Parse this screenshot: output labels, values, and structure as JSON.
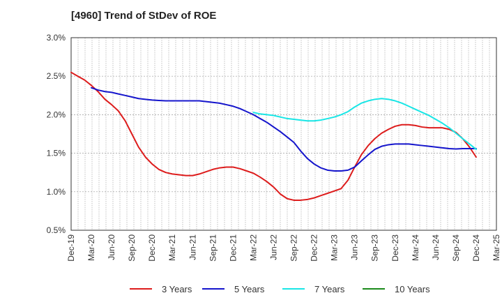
{
  "title": "[4960]  Trend of StDev of ROE",
  "chart_data": {
    "type": "line",
    "title": "[4960]  Trend of StDev of ROE",
    "xlabel": "",
    "ylabel": "",
    "ylim": [
      0.5,
      3.0
    ],
    "yticks": [
      "0.5%",
      "1.0%",
      "1.5%",
      "2.0%",
      "2.5%",
      "3.0%"
    ],
    "categories": [
      "Dec-19",
      "Mar-20",
      "Jun-20",
      "Sep-20",
      "Dec-20",
      "Mar-21",
      "Jun-21",
      "Sep-21",
      "Dec-21",
      "Mar-22",
      "Jun-22",
      "Sep-22",
      "Dec-22",
      "Mar-23",
      "Jun-23",
      "Sep-23",
      "Dec-23",
      "Mar-24",
      "Jun-24",
      "Sep-24",
      "Dec-24",
      "Mar-25"
    ],
    "grid": true,
    "legend_position": "bottom",
    "series": [
      {
        "name": "3 Years",
        "color": "#dd1c1c",
        "x": [
          0,
          0.33,
          0.67,
          1,
          1.33,
          1.67,
          2,
          2.33,
          2.67,
          3,
          3.33,
          3.67,
          4,
          4.33,
          4.67,
          5,
          5.33,
          5.67,
          6,
          6.33,
          6.67,
          7,
          7.33,
          7.67,
          8,
          8.33,
          8.67,
          9,
          9.33,
          9.67,
          10,
          10.33,
          10.67,
          11,
          11.33,
          11.67,
          12,
          12.33,
          12.67,
          13,
          13.33,
          13.67,
          14,
          14.33,
          14.67,
          15,
          15.33,
          15.67,
          16,
          16.33,
          16.67,
          17,
          17.33,
          17.67,
          18,
          18.33,
          18.67,
          19,
          19.33,
          19.67,
          20
        ],
        "values": [
          2.55,
          2.5,
          2.45,
          2.38,
          2.3,
          2.2,
          2.13,
          2.05,
          1.92,
          1.75,
          1.58,
          1.45,
          1.36,
          1.29,
          1.25,
          1.23,
          1.22,
          1.21,
          1.21,
          1.23,
          1.26,
          1.29,
          1.31,
          1.32,
          1.32,
          1.3,
          1.27,
          1.24,
          1.19,
          1.13,
          1.06,
          0.97,
          0.91,
          0.89,
          0.89,
          0.9,
          0.92,
          0.95,
          0.98,
          1.01,
          1.04,
          1.15,
          1.32,
          1.48,
          1.6,
          1.69,
          1.76,
          1.81,
          1.85,
          1.87,
          1.87,
          1.86,
          1.84,
          1.83,
          1.83,
          1.83,
          1.81,
          1.77,
          1.69,
          1.58,
          1.45
        ]
      },
      {
        "name": "5 Years",
        "color": "#1515cc",
        "x": [
          1,
          1.33,
          1.67,
          2,
          2.33,
          2.67,
          3,
          3.33,
          3.67,
          4,
          4.33,
          4.67,
          5,
          5.33,
          5.67,
          6,
          6.33,
          6.67,
          7,
          7.33,
          7.67,
          8,
          8.33,
          8.67,
          9,
          9.33,
          9.67,
          10,
          10.33,
          10.67,
          11,
          11.33,
          11.67,
          12,
          12.33,
          12.67,
          13,
          13.33,
          13.67,
          14,
          14.33,
          14.67,
          15,
          15.33,
          15.67,
          16,
          16.33,
          16.67,
          17,
          17.33,
          17.67,
          18,
          18.33,
          18.67,
          19,
          19.33,
          19.67,
          20
        ],
        "values": [
          2.35,
          2.32,
          2.3,
          2.29,
          2.27,
          2.25,
          2.23,
          2.21,
          2.2,
          2.19,
          2.185,
          2.18,
          2.18,
          2.18,
          2.18,
          2.18,
          2.18,
          2.17,
          2.16,
          2.15,
          2.13,
          2.11,
          2.08,
          2.04,
          2.0,
          1.95,
          1.9,
          1.84,
          1.78,
          1.71,
          1.64,
          1.53,
          1.43,
          1.36,
          1.31,
          1.28,
          1.27,
          1.27,
          1.28,
          1.32,
          1.4,
          1.48,
          1.55,
          1.59,
          1.61,
          1.62,
          1.62,
          1.62,
          1.61,
          1.6,
          1.59,
          1.58,
          1.57,
          1.56,
          1.555,
          1.56,
          1.56,
          1.56
        ]
      },
      {
        "name": "7 Years",
        "color": "#19e6e6",
        "x": [
          9,
          9.33,
          9.67,
          10,
          10.33,
          10.67,
          11,
          11.33,
          11.67,
          12,
          12.33,
          12.67,
          13,
          13.33,
          13.67,
          14,
          14.33,
          14.67,
          15,
          15.33,
          15.67,
          16,
          16.33,
          16.67,
          17,
          17.33,
          17.67,
          18,
          18.33,
          18.67,
          19,
          19.33,
          19.67,
          20
        ],
        "values": [
          2.03,
          2.01,
          2.0,
          1.99,
          1.97,
          1.95,
          1.94,
          1.93,
          1.92,
          1.92,
          1.93,
          1.95,
          1.97,
          2.0,
          2.04,
          2.1,
          2.15,
          2.18,
          2.2,
          2.21,
          2.2,
          2.18,
          2.15,
          2.11,
          2.07,
          2.03,
          1.99,
          1.94,
          1.89,
          1.83,
          1.76,
          1.69,
          1.62,
          1.55
        ]
      },
      {
        "name": "10 Years",
        "color": "#1a8a1a",
        "x": [],
        "values": []
      }
    ]
  }
}
